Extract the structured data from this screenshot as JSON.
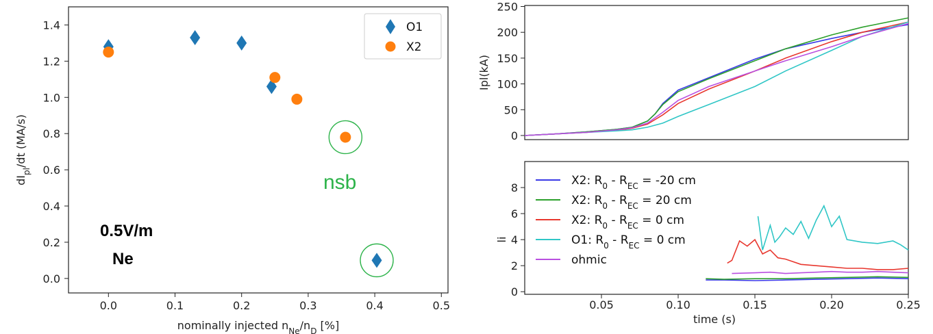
{
  "chart_data": [
    {
      "type": "scatter",
      "xlabel_main": "nominally injected n",
      "xlabel_sub1": "Ne",
      "xlabel_mid": "/n",
      "xlabel_sub2": "D",
      "xlabel_tail": " [%]",
      "ylabel_main": "dI",
      "ylabel_sub": "pl",
      "ylabel_tail": "/dt (MA/s)",
      "xlim": [
        -0.06,
        0.51
      ],
      "ylim": [
        -0.08,
        1.5
      ],
      "xticks": [
        "0.0",
        "0.1",
        "0.2",
        "0.3",
        "0.4",
        "0.5"
      ],
      "xtick_values": [
        0.0,
        0.1,
        0.2,
        0.3,
        0.4,
        0.5
      ],
      "yticks": [
        "0.0",
        "0.2",
        "0.4",
        "0.6",
        "0.8",
        "1.0",
        "1.2",
        "1.4"
      ],
      "ytick_values": [
        0.0,
        0.2,
        0.4,
        0.6,
        0.8,
        1.0,
        1.2,
        1.4
      ],
      "legend_position": "top-right",
      "series": [
        {
          "name": "O1",
          "marker": "diamond",
          "color": "#1f77b4",
          "x": [
            0.0,
            0.13,
            0.2,
            0.245,
            0.403
          ],
          "y": [
            1.28,
            1.33,
            1.3,
            1.06,
            0.1
          ]
        },
        {
          "name": "X2",
          "marker": "circle",
          "color": "#ff7f0e",
          "x": [
            0.0,
            0.25,
            0.283,
            0.356
          ],
          "y": [
            1.25,
            1.11,
            0.99,
            0.78
          ]
        }
      ],
      "circled_points": [
        {
          "x": 0.356,
          "y": 0.78
        },
        {
          "x": 0.403,
          "y": 0.1
        }
      ],
      "annotations": {
        "nsb": "nsb",
        "field": "0.5V/m",
        "gas": "Ne"
      }
    },
    {
      "type": "line",
      "ylabel": "Ipl(kA)",
      "xlim": [
        0.0,
        0.25
      ],
      "ylim": [
        -8,
        252
      ],
      "yticks": [
        "0",
        "50",
        "100",
        "150",
        "200",
        "250"
      ],
      "ytick_values": [
        0,
        50,
        100,
        150,
        200,
        250
      ],
      "series": [
        {
          "name": "X2 -20 cm",
          "color": "#3a3ae6",
          "x": [
            0,
            0.02,
            0.04,
            0.06,
            0.07,
            0.08,
            0.085,
            0.09,
            0.1,
            0.12,
            0.15,
            0.17,
            0.2,
            0.22,
            0.25
          ],
          "y": [
            0,
            3,
            7,
            12,
            16,
            28,
            42,
            62,
            88,
            112,
            148,
            168,
            188,
            200,
            215
          ]
        },
        {
          "name": "X2 20 cm",
          "color": "#2ca02c",
          "x": [
            0,
            0.02,
            0.04,
            0.06,
            0.07,
            0.08,
            0.085,
            0.09,
            0.1,
            0.12,
            0.15,
            0.17,
            0.2,
            0.22,
            0.25
          ],
          "y": [
            0,
            3,
            7,
            12,
            16,
            28,
            42,
            60,
            85,
            110,
            145,
            168,
            195,
            210,
            228
          ]
        },
        {
          "name": "X2 0 cm",
          "color": "#e8372e",
          "x": [
            0,
            0.02,
            0.04,
            0.06,
            0.07,
            0.08,
            0.09,
            0.1,
            0.12,
            0.15,
            0.17,
            0.2,
            0.22,
            0.25
          ],
          "y": [
            0,
            3,
            6,
            10,
            14,
            22,
            40,
            62,
            90,
            125,
            150,
            182,
            200,
            220
          ]
        },
        {
          "name": "O1 0 cm",
          "color": "#2fc6c6",
          "x": [
            0,
            0.02,
            0.04,
            0.06,
            0.07,
            0.08,
            0.09,
            0.1,
            0.12,
            0.15,
            0.17,
            0.2,
            0.22,
            0.25
          ],
          "y": [
            0,
            3,
            6,
            9,
            11,
            16,
            24,
            37,
            60,
            95,
            125,
            165,
            192,
            220
          ]
        },
        {
          "name": "ohmic",
          "color": "#b94fe0",
          "x": [
            0,
            0.02,
            0.04,
            0.06,
            0.07,
            0.08,
            0.09,
            0.1,
            0.12,
            0.15,
            0.17,
            0.2,
            0.22,
            0.25
          ],
          "y": [
            0,
            3,
            6,
            11,
            15,
            24,
            45,
            68,
            95,
            125,
            145,
            172,
            192,
            217
          ]
        }
      ]
    },
    {
      "type": "line",
      "xlabel": "time (s)",
      "ylabel": "li",
      "xlim": [
        0.0,
        0.25
      ],
      "ylim": [
        -0.2,
        10.0
      ],
      "xticks": [
        "0.05",
        "0.10",
        "0.15",
        "0.20",
        "0.25"
      ],
      "xtick_values": [
        0.05,
        0.1,
        0.15,
        0.2,
        0.25
      ],
      "yticks": [
        "0",
        "2",
        "4",
        "6",
        "8"
      ],
      "ytick_values": [
        0,
        2,
        4,
        6,
        8
      ],
      "legend_position": "top-left",
      "series": [
        {
          "name": "X2:   R0 - REC = -20 cm",
          "color": "#3a3ae6",
          "legend_prefix": "X2:   R",
          "legend_sub1": "0",
          "legend_mid": " - R",
          "legend_sub2": "EC",
          "legend_tail": " = -20 cm",
          "x": [
            0.118,
            0.13,
            0.15,
            0.17,
            0.19,
            0.21,
            0.23,
            0.25
          ],
          "y": [
            0.9,
            0.9,
            0.85,
            0.9,
            0.95,
            1.0,
            1.05,
            1.0
          ]
        },
        {
          "name": "X2:   R0 - REC = 20 cm",
          "color": "#2ca02c",
          "legend_prefix": "X2:   R",
          "legend_sub1": "0",
          "legend_mid": " - R",
          "legend_sub2": "EC",
          "legend_tail": " = 20 cm",
          "x": [
            0.118,
            0.13,
            0.15,
            0.17,
            0.19,
            0.21,
            0.23,
            0.25
          ],
          "y": [
            1.0,
            0.95,
            1.0,
            1.0,
            1.05,
            1.1,
            1.15,
            1.1
          ]
        },
        {
          "name": "X2:   R0 - REC = 0 cm",
          "color": "#e8372e",
          "legend_prefix": "X2:   R",
          "legend_sub1": "0",
          "legend_mid": " - R",
          "legend_sub2": "EC",
          "legend_tail": " = 0 cm",
          "x": [
            0.132,
            0.135,
            0.14,
            0.145,
            0.15,
            0.155,
            0.16,
            0.165,
            0.17,
            0.18,
            0.19,
            0.2,
            0.21,
            0.22,
            0.23,
            0.24,
            0.25
          ],
          "y": [
            2.2,
            2.4,
            3.9,
            3.5,
            4.0,
            2.9,
            3.2,
            2.6,
            2.5,
            2.1,
            2.0,
            1.9,
            1.8,
            1.8,
            1.7,
            1.7,
            1.8
          ]
        },
        {
          "name": "O1:   R0 - REC = 0 cm",
          "color": "#2fc6c6",
          "legend_prefix": "O1:   R",
          "legend_sub1": "0",
          "legend_mid": " - R",
          "legend_sub2": "EC",
          "legend_tail": " = 0 cm",
          "x": [
            0.152,
            0.155,
            0.16,
            0.163,
            0.166,
            0.17,
            0.175,
            0.18,
            0.185,
            0.19,
            0.195,
            0.2,
            0.205,
            0.21,
            0.22,
            0.23,
            0.24,
            0.245,
            0.25
          ],
          "y": [
            5.8,
            3.2,
            5.1,
            3.8,
            4.2,
            4.9,
            4.4,
            5.4,
            4.1,
            5.5,
            6.6,
            5.0,
            5.8,
            4.0,
            3.8,
            3.7,
            3.9,
            3.6,
            3.2
          ]
        },
        {
          "name": "ohmic",
          "color": "#b94fe0",
          "legend_prefix": "ohmic",
          "legend_sub1": "",
          "legend_mid": "",
          "legend_sub2": "",
          "legend_tail": "",
          "x": [
            0.135,
            0.15,
            0.16,
            0.17,
            0.18,
            0.19,
            0.2,
            0.21,
            0.22,
            0.23,
            0.24,
            0.25
          ],
          "y": [
            1.4,
            1.45,
            1.5,
            1.4,
            1.45,
            1.5,
            1.55,
            1.5,
            1.5,
            1.55,
            1.5,
            1.45
          ]
        }
      ]
    }
  ]
}
